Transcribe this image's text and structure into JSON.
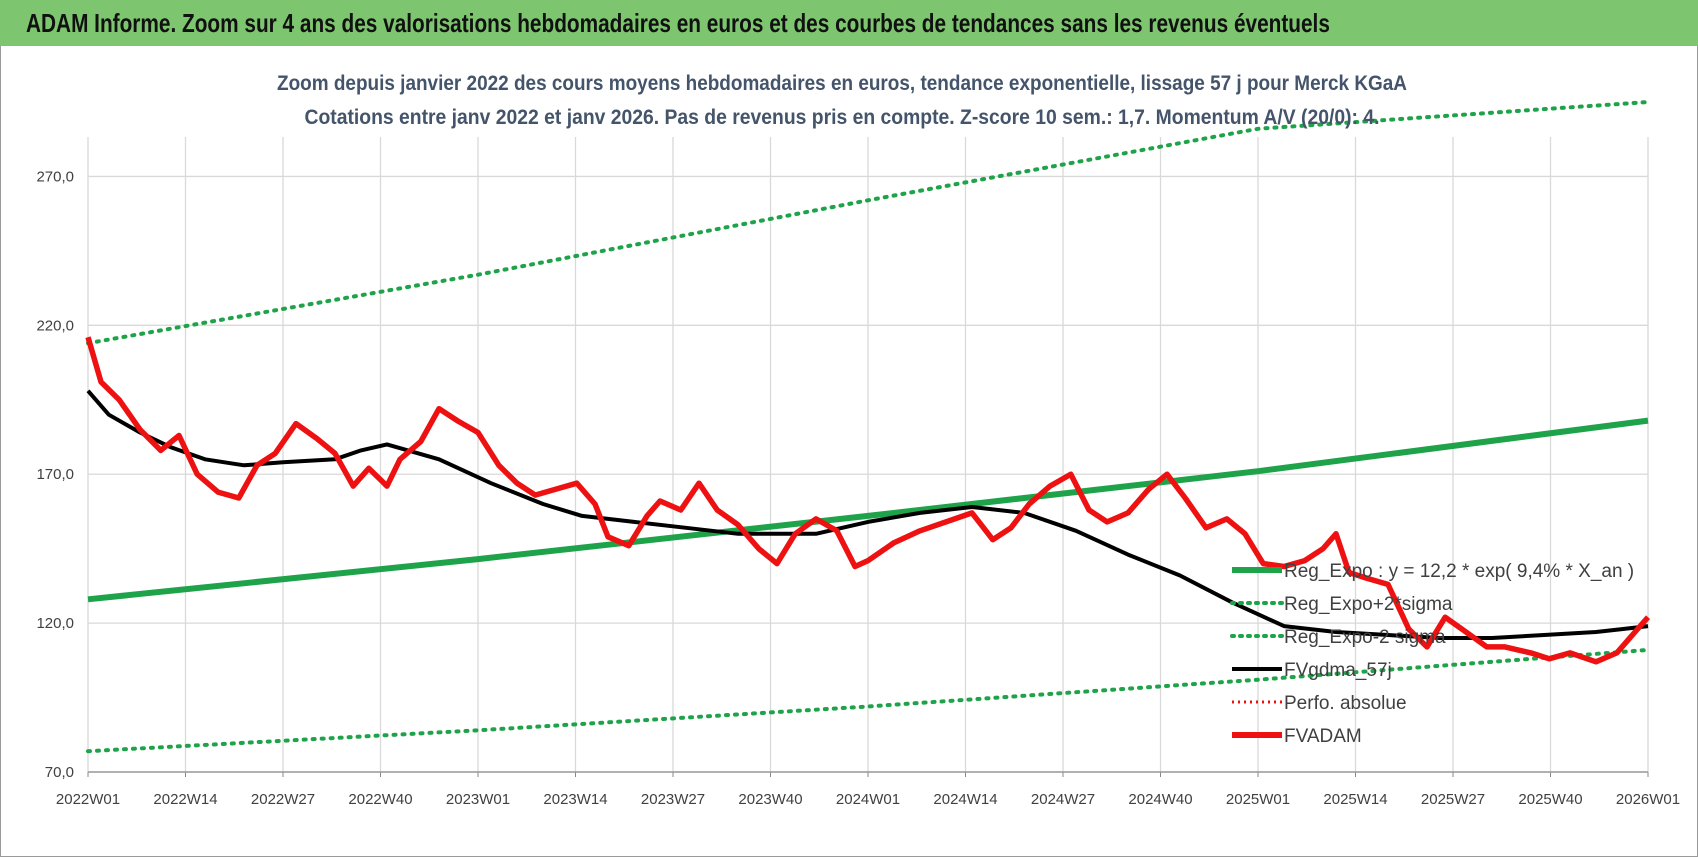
{
  "banner": {
    "title": "ADAM Informe. Zoom sur 4 ans des valorisations hebdomadaires en euros et des courbes de tendances sans les revenus éventuels"
  },
  "colors": {
    "banner": "#7dc66f",
    "trend": "#1fa34a",
    "price": "#ee1111",
    "smooth": "#000000",
    "perf": "#ee1111",
    "grid": "#d9d9d9"
  },
  "chart_data": {
    "type": "line",
    "title_lines": [
      "Zoom depuis janvier 2022 des cours moyens hebdomadaires en euros, tendance exponentielle, lissage 57 j pour Merck KGaA",
      "Cotations entre janv 2022 et janv 2026. Pas de revenus pris en compte. Z-score 10 sem.: 1,7. Momentum A/V (20/0): 4."
    ],
    "x_tick_labels": [
      "2022W01",
      "2022W14",
      "2022W27",
      "2022W40",
      "2023W01",
      "2023W14",
      "2023W27",
      "2023W40",
      "2024W01",
      "2024W14",
      "2024W27",
      "2024W40",
      "2025W01",
      "2025W14",
      "2025W27",
      "2025W40",
      "2026W01"
    ],
    "y_tick_labels": [
      "70,0",
      "120,0",
      "170,0",
      "220,0",
      "270,0"
    ],
    "y_ticks": [
      70,
      120,
      170,
      220,
      270
    ],
    "ylim": [
      70,
      295
    ],
    "x_range_years": [
      0,
      4
    ],
    "legend": [
      {
        "key": "trend",
        "label": "Reg_Expo : y = 12,2 * exp( 9,4% *  X_an )"
      },
      {
        "key": "upper",
        "label": "Reg_Expo+2*sigma"
      },
      {
        "key": "lower",
        "label": "Reg_Expo-2 sigma"
      },
      {
        "key": "smooth",
        "label": "FVgdma_57j"
      },
      {
        "key": "perf",
        "label": "Perfo. absolue"
      },
      {
        "key": "price",
        "label": "FVADAM"
      }
    ],
    "series": [
      {
        "name": "Reg_Expo",
        "style": "trend",
        "points": [
          [
            0,
            128
          ],
          [
            1,
            141.5
          ],
          [
            2,
            156
          ],
          [
            3,
            171
          ],
          [
            4,
            188
          ]
        ]
      },
      {
        "name": "Reg_Expo+2*sigma",
        "style": "upper",
        "points": [
          [
            0,
            214
          ],
          [
            1,
            237
          ],
          [
            2,
            262
          ],
          [
            3,
            286
          ],
          [
            4,
            295
          ]
        ]
      },
      {
        "name": "Reg_Expo-2 sigma",
        "style": "lower",
        "points": [
          [
            0,
            77
          ],
          [
            1,
            84
          ],
          [
            2,
            92
          ],
          [
            3,
            101
          ],
          [
            4,
            111
          ]
        ]
      },
      {
        "name": "FVgdma_57j",
        "style": "smooth",
        "points": [
          [
            0,
            198
          ],
          [
            0.08,
            190
          ],
          [
            0.2,
            184
          ],
          [
            0.32,
            179
          ],
          [
            0.45,
            175
          ],
          [
            0.6,
            173
          ],
          [
            0.75,
            174
          ],
          [
            0.95,
            175
          ],
          [
            1.05,
            178
          ],
          [
            1.15,
            180
          ],
          [
            1.35,
            175
          ],
          [
            1.55,
            167
          ],
          [
            1.75,
            160
          ],
          [
            1.9,
            156
          ],
          [
            2.1,
            154
          ],
          [
            2.3,
            152
          ],
          [
            2.5,
            150
          ],
          [
            2.8,
            150
          ],
          [
            3.0,
            154
          ],
          [
            3.2,
            157
          ],
          [
            3.4,
            159
          ],
          [
            3.6,
            157
          ],
          [
            3.8,
            151
          ],
          [
            4.0,
            143
          ],
          [
            4.2,
            136
          ],
          [
            4.4,
            127
          ],
          [
            4.6,
            119
          ],
          [
            4.8,
            117
          ],
          [
            5.0,
            116
          ],
          [
            5.2,
            115
          ],
          [
            5.4,
            115
          ],
          [
            5.6,
            116
          ],
          [
            5.8,
            117
          ],
          [
            5.9,
            118
          ],
          [
            6.0,
            119
          ]
        ]
      },
      {
        "name": "FVADAM",
        "style": "price",
        "points": [
          [
            0,
            216
          ],
          [
            0.05,
            201
          ],
          [
            0.12,
            195
          ],
          [
            0.2,
            185
          ],
          [
            0.28,
            178
          ],
          [
            0.35,
            183
          ],
          [
            0.42,
            170
          ],
          [
            0.5,
            164
          ],
          [
            0.58,
            162
          ],
          [
            0.65,
            173
          ],
          [
            0.72,
            177
          ],
          [
            0.8,
            187
          ],
          [
            0.88,
            182
          ],
          [
            0.95,
            177
          ],
          [
            1.02,
            166
          ],
          [
            1.08,
            172
          ],
          [
            1.15,
            166
          ],
          [
            1.2,
            175
          ],
          [
            1.28,
            181
          ],
          [
            1.35,
            192
          ],
          [
            1.42,
            188
          ],
          [
            1.5,
            184
          ],
          [
            1.58,
            173
          ],
          [
            1.65,
            167
          ],
          [
            1.72,
            163
          ],
          [
            1.8,
            165
          ],
          [
            1.88,
            167
          ],
          [
            1.95,
            160
          ],
          [
            2.0,
            149
          ],
          [
            2.08,
            146
          ],
          [
            2.15,
            156
          ],
          [
            2.2,
            161
          ],
          [
            2.28,
            158
          ],
          [
            2.35,
            167
          ],
          [
            2.42,
            158
          ],
          [
            2.5,
            153
          ],
          [
            2.58,
            145
          ],
          [
            2.65,
            140
          ],
          [
            2.72,
            150
          ],
          [
            2.8,
            155
          ],
          [
            2.88,
            151
          ],
          [
            2.95,
            139
          ],
          [
            3.0,
            141
          ],
          [
            3.1,
            147
          ],
          [
            3.2,
            151
          ],
          [
            3.3,
            154
          ],
          [
            3.4,
            157
          ],
          [
            3.48,
            148
          ],
          [
            3.55,
            152
          ],
          [
            3.62,
            160
          ],
          [
            3.7,
            166
          ],
          [
            3.78,
            170
          ],
          [
            3.85,
            158
          ],
          [
            3.92,
            154
          ],
          [
            4.0,
            157
          ],
          [
            4.08,
            165
          ],
          [
            4.15,
            170
          ],
          [
            4.22,
            162
          ],
          [
            4.3,
            152
          ],
          [
            4.38,
            155
          ],
          [
            4.45,
            150
          ],
          [
            4.52,
            140
          ],
          [
            4.6,
            139
          ],
          [
            4.68,
            141
          ],
          [
            4.75,
            145
          ],
          [
            4.8,
            150
          ],
          [
            4.85,
            137
          ],
          [
            4.92,
            135
          ],
          [
            5.0,
            133
          ],
          [
            5.08,
            118
          ],
          [
            5.15,
            112
          ],
          [
            5.22,
            122
          ],
          [
            5.3,
            117
          ],
          [
            5.38,
            112
          ],
          [
            5.45,
            112
          ],
          [
            5.55,
            110
          ],
          [
            5.62,
            108
          ],
          [
            5.7,
            110
          ],
          [
            5.8,
            107
          ],
          [
            5.88,
            110
          ],
          [
            5.95,
            117
          ],
          [
            6.0,
            122
          ]
        ]
      }
    ]
  }
}
